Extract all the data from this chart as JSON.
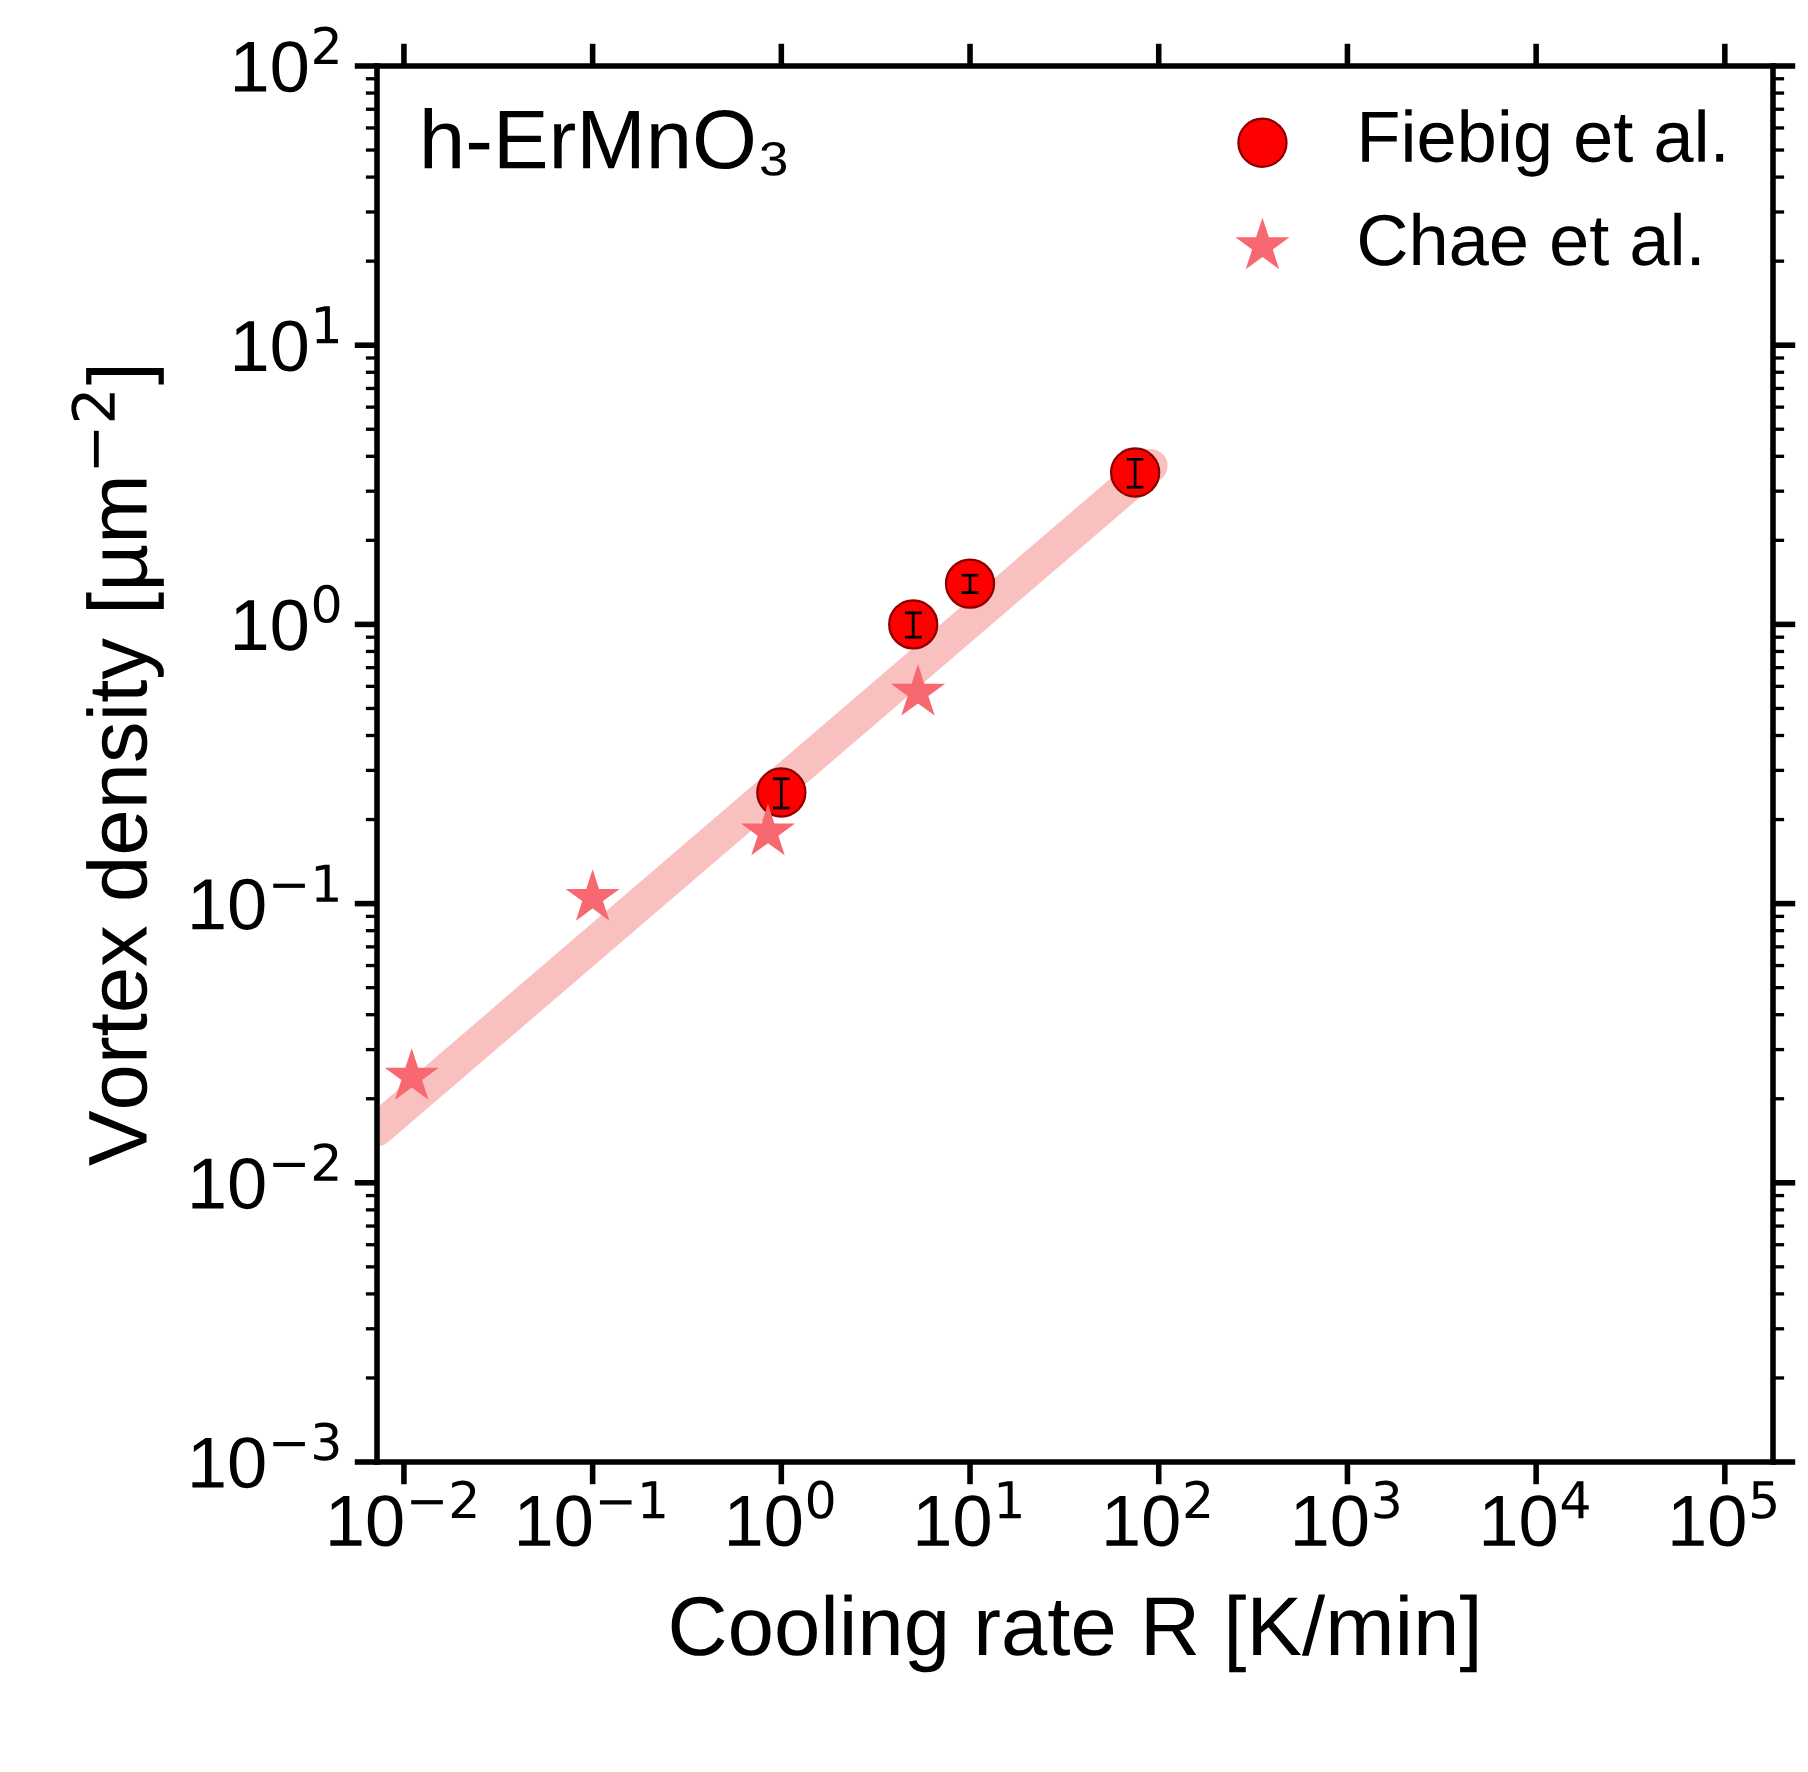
{
  "chart_data": {
    "type": "scatter",
    "xlabel": "Cooling rate R [K/min]",
    "ylabel": "Vortex density [µm$^{−2}$]",
    "annotations": [
      "h-ErMnO₃"
    ],
    "log": "xy",
    "xlim": [
      0.0072,
      180000
    ],
    "ylim": [
      0.001,
      100
    ],
    "xticks": [
      {
        "value": 0.01,
        "label": "10$^{−2}$"
      },
      {
        "value": 0.1,
        "label": "10$^{−1}$"
      },
      {
        "value": 1,
        "label": "10$^{0}$"
      },
      {
        "value": 10,
        "label": "10$^{1}$"
      },
      {
        "value": 100,
        "label": "10$^{2}$"
      },
      {
        "value": 1000,
        "label": "10$^{3}$"
      },
      {
        "value": 10000,
        "label": "10$^{4}$"
      },
      {
        "value": 100000,
        "label": "10$^{5}$"
      }
    ],
    "yticks": [
      {
        "value": 0.001,
        "label": "10$^{−3}$"
      },
      {
        "value": 0.01,
        "label": "10$^{−2}$"
      },
      {
        "value": 0.1,
        "label": "10$^{−1}$"
      },
      {
        "value": 1,
        "label": "10$^{0}$"
      },
      {
        "value": 10,
        "label": "10$^{1}$"
      },
      {
        "value": 100,
        "label": "10$^{2}$"
      }
    ],
    "legend": "top right",
    "grid": false,
    "series": [
      {
        "type": "line",
        "color": "#f9c0c0",
        "x": [
          0.0072,
          91
        ],
        "values": [
          0.0155,
          3.7
        ]
      },
      {
        "name": "Fiebig et al.",
        "color": "#ff0000",
        "marker": "circle",
        "x": [
          1,
          5,
          10,
          75
        ],
        "values": [
          0.25,
          1.0,
          1.4,
          3.5
        ],
        "errors": [
          0.03,
          0.1,
          0.1,
          0.4
        ]
      },
      {
        "name": "Chae et al.",
        "color": "#f86870",
        "marker": "star",
        "x": [
          0.011,
          0.1,
          0.85,
          5.3
        ],
        "values": [
          0.024,
          0.105,
          0.18,
          0.57
        ]
      }
    ]
  }
}
